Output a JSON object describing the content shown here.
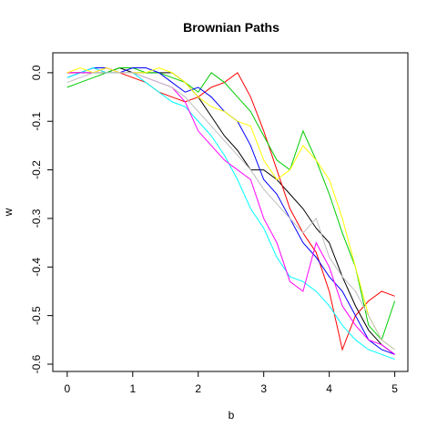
{
  "chart_data": {
    "type": "line",
    "title": "Brownian Paths",
    "x_label": "b",
    "y_label": "w",
    "x": [
      0,
      0.2,
      0.4,
      0.6,
      0.8,
      1.0,
      1.2,
      1.4,
      1.6,
      1.8,
      2.0,
      2.2,
      2.4,
      2.6,
      2.8,
      3.0,
      3.2,
      3.4,
      3.6,
      3.8,
      4.0,
      4.2,
      4.4,
      4.6,
      4.8,
      5.0
    ],
    "series": [
      {
        "color": "#000000",
        "values": [
          0,
          0,
          0,
          0,
          0.01,
          0,
          0,
          0,
          0,
          -0.02,
          -0.05,
          -0.09,
          -0.13,
          -0.16,
          -0.2,
          -0.2,
          -0.22,
          -0.25,
          -0.28,
          -0.32,
          -0.35,
          -0.42,
          -0.48,
          -0.53,
          -0.56,
          -0.58
        ]
      },
      {
        "color": "#ff0000",
        "values": [
          0,
          0,
          0.01,
          0,
          0,
          -0.01,
          -0.02,
          -0.04,
          -0.05,
          -0.06,
          -0.05,
          -0.03,
          -0.02,
          0,
          -0.05,
          -0.12,
          -0.2,
          -0.28,
          -0.33,
          -0.37,
          -0.45,
          -0.57,
          -0.5,
          -0.47,
          -0.45,
          -0.46
        ]
      },
      {
        "color": "#00cd00",
        "values": [
          -0.03,
          -0.02,
          -0.01,
          0,
          0.01,
          0.01,
          0,
          0,
          -0.01,
          -0.02,
          -0.04,
          0,
          -0.02,
          -0.05,
          -0.08,
          -0.13,
          -0.18,
          -0.2,
          -0.12,
          -0.18,
          -0.25,
          -0.33,
          -0.4,
          -0.52,
          -0.55,
          -0.47
        ]
      },
      {
        "color": "#0000ff",
        "values": [
          -0.01,
          0,
          0.01,
          0.01,
          0,
          0.01,
          0.01,
          0,
          -0.02,
          -0.04,
          -0.03,
          -0.05,
          -0.08,
          -0.1,
          -0.15,
          -0.22,
          -0.25,
          -0.3,
          -0.35,
          -0.38,
          -0.42,
          -0.45,
          -0.5,
          -0.55,
          -0.57,
          -0.58
        ]
      },
      {
        "color": "#00ffff",
        "values": [
          -0.01,
          0,
          0.01,
          0,
          0,
          0,
          -0.02,
          -0.04,
          -0.06,
          -0.07,
          -0.1,
          -0.13,
          -0.17,
          -0.22,
          -0.28,
          -0.32,
          -0.38,
          -0.42,
          -0.43,
          -0.45,
          -0.48,
          -0.52,
          -0.55,
          -0.57,
          -0.58,
          -0.59
        ]
      },
      {
        "color": "#ff00ff",
        "values": [
          0,
          0,
          0,
          0.01,
          0,
          0,
          -0.01,
          -0.02,
          -0.03,
          -0.06,
          -0.12,
          -0.15,
          -0.18,
          -0.2,
          -0.22,
          -0.3,
          -0.35,
          -0.43,
          -0.45,
          -0.35,
          -0.4,
          -0.48,
          -0.52,
          -0.55,
          -0.56,
          -0.58
        ]
      },
      {
        "color": "#ffff00",
        "values": [
          0,
          0.01,
          0,
          0.01,
          0,
          0,
          0,
          0.01,
          0,
          -0.02,
          -0.05,
          -0.07,
          -0.08,
          -0.1,
          -0.11,
          -0.18,
          -0.22,
          -0.2,
          -0.15,
          -0.18,
          -0.22,
          -0.3,
          -0.4,
          -0.5,
          -0.55,
          -0.57
        ]
      },
      {
        "color": "#bebebe",
        "values": [
          -0.02,
          -0.01,
          0,
          0,
          0,
          0,
          -0.01,
          -0.02,
          -0.03,
          -0.05,
          -0.08,
          -0.11,
          -0.14,
          -0.17,
          -0.2,
          -0.24,
          -0.27,
          -0.3,
          -0.33,
          -0.3,
          -0.38,
          -0.42,
          -0.45,
          -0.5,
          -0.55,
          -0.57
        ]
      }
    ],
    "xlim": [
      -0.22,
      5.2
    ],
    "ylim": [
      -0.615,
      0.041
    ],
    "xticks": [
      0,
      1,
      2,
      3,
      4,
      5
    ],
    "yticks": [
      {
        "value": 0,
        "label": "0.0"
      },
      -0.1,
      -0.2,
      -0.3,
      -0.4,
      -0.5,
      -0.6
    ]
  }
}
